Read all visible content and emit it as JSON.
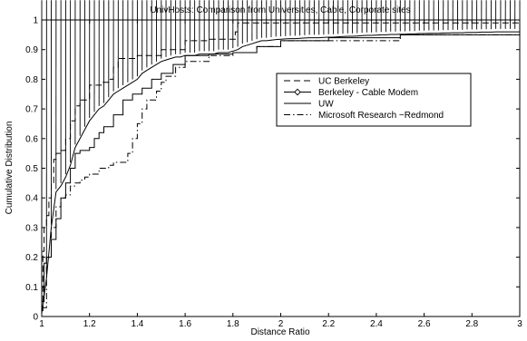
{
  "chart_data": {
    "type": "line",
    "title": "UnivHosts: Comparison from Universities, Cable, Corporate sites",
    "xlabel": "Distance Ratio",
    "ylabel": "Cumulative Distribution",
    "xlim": [
      1,
      3
    ],
    "ylim": [
      0,
      1
    ],
    "xticks": [
      "1",
      "1.2",
      "1.4",
      "1.6",
      "1.8",
      "2",
      "2.2",
      "2.4",
      "2.6",
      "2.8",
      "3"
    ],
    "yticks": [
      "0",
      "0.1",
      "0.2",
      "0.3",
      "0.4",
      "0.5",
      "0.6",
      "0.7",
      "0.8",
      "0.9",
      "1"
    ],
    "grid": false,
    "legend_position": "center-right",
    "series": [
      {
        "name": "UC Berkeley",
        "style": "dashed",
        "marker": "none",
        "x": [
          1.0,
          1.005,
          1.01,
          1.02,
          1.03,
          1.04,
          1.05,
          1.06,
          1.08,
          1.1,
          1.12,
          1.14,
          1.16,
          1.2,
          1.25,
          1.28,
          1.3,
          1.32,
          1.4,
          1.5,
          1.6,
          1.7,
          1.8,
          1.81,
          1.82,
          2.0,
          2.5,
          3.0
        ],
        "y": [
          0.02,
          0.22,
          0.3,
          0.34,
          0.4,
          0.45,
          0.53,
          0.55,
          0.56,
          0.6,
          0.66,
          0.71,
          0.73,
          0.78,
          0.79,
          0.8,
          0.84,
          0.87,
          0.88,
          0.9,
          0.93,
          0.935,
          0.935,
          0.96,
          0.99,
          0.99,
          0.99,
          0.99
        ]
      },
      {
        "name": "Berkeley - Cable Modem",
        "style": "solid",
        "marker": "diamond",
        "x": [
          1.0,
          1.02,
          1.04,
          1.06,
          1.08,
          1.1,
          1.12,
          1.14,
          1.16,
          1.18,
          1.2,
          1.22,
          1.24,
          1.26,
          1.28,
          1.3,
          1.32,
          1.34,
          1.36,
          1.38,
          1.4,
          1.42,
          1.44,
          1.46,
          1.48,
          1.5,
          1.52,
          1.54,
          1.56,
          1.58,
          1.6,
          1.62,
          1.64,
          1.66,
          1.68,
          1.7,
          1.72,
          1.74,
          1.76,
          1.78,
          1.8,
          1.82,
          1.84,
          1.86,
          1.88,
          1.9,
          1.92,
          1.94,
          1.96,
          1.98,
          2.0,
          2.02,
          2.04,
          2.06,
          2.08,
          2.1,
          2.12,
          2.14,
          2.16,
          2.18,
          2.2,
          2.22,
          2.24,
          2.26,
          2.28,
          2.3,
          2.32,
          2.34,
          2.36,
          2.38,
          2.4,
          2.42,
          2.44,
          2.46,
          2.48,
          2.5,
          2.52,
          2.54,
          2.56,
          2.58,
          2.6,
          2.62,
          2.64,
          2.66,
          2.68,
          2.7,
          2.72,
          2.74,
          2.76,
          2.78,
          2.8,
          2.82,
          2.84,
          2.86,
          2.88,
          2.9,
          2.92,
          2.94,
          2.96,
          2.98,
          3.0
        ],
        "y": [
          0.01,
          0.13,
          0.3,
          0.42,
          0.44,
          0.47,
          0.51,
          0.57,
          0.6,
          0.63,
          0.66,
          0.68,
          0.7,
          0.71,
          0.73,
          0.75,
          0.76,
          0.77,
          0.78,
          0.79,
          0.8,
          0.82,
          0.83,
          0.84,
          0.85,
          0.86,
          0.865,
          0.87,
          0.875,
          0.875,
          0.88,
          0.88,
          0.88,
          0.885,
          0.885,
          0.885,
          0.885,
          0.89,
          0.89,
          0.89,
          0.895,
          0.9,
          0.91,
          0.915,
          0.92,
          0.925,
          0.93,
          0.93,
          0.932,
          0.934,
          0.935,
          0.936,
          0.937,
          0.937,
          0.938,
          0.939,
          0.94,
          0.94,
          0.94,
          0.941,
          0.942,
          0.942,
          0.943,
          0.944,
          0.945,
          0.945,
          0.946,
          0.947,
          0.948,
          0.948,
          0.949,
          0.95,
          0.95,
          0.951,
          0.951,
          0.952,
          0.952,
          0.953,
          0.953,
          0.954,
          0.954,
          0.955,
          0.955,
          0.955,
          0.956,
          0.956,
          0.957,
          0.957,
          0.957,
          0.958,
          0.958,
          0.958,
          0.959,
          0.959,
          0.959,
          0.96,
          0.96,
          0.96,
          0.96,
          0.96,
          0.96
        ]
      },
      {
        "name": "UW",
        "style": "solid",
        "marker": "none",
        "x": [
          1.0,
          1.01,
          1.02,
          1.04,
          1.06,
          1.08,
          1.1,
          1.12,
          1.14,
          1.16,
          1.2,
          1.22,
          1.24,
          1.26,
          1.3,
          1.34,
          1.38,
          1.42,
          1.46,
          1.5,
          1.55,
          1.6,
          1.7,
          1.8,
          1.9,
          2.0,
          2.2,
          2.5,
          3.0
        ],
        "y": [
          0.05,
          0.18,
          0.2,
          0.26,
          0.33,
          0.4,
          0.45,
          0.5,
          0.55,
          0.56,
          0.57,
          0.6,
          0.62,
          0.64,
          0.68,
          0.73,
          0.75,
          0.77,
          0.8,
          0.82,
          0.85,
          0.88,
          0.885,
          0.89,
          0.91,
          0.93,
          0.94,
          0.95,
          0.96
        ]
      },
      {
        "name": "Microsoft Research −Redmond",
        "style": "dashdot",
        "marker": "none",
        "x": [
          1.0,
          1.02,
          1.04,
          1.06,
          1.08,
          1.1,
          1.12,
          1.14,
          1.16,
          1.18,
          1.2,
          1.24,
          1.28,
          1.3,
          1.34,
          1.36,
          1.38,
          1.4,
          1.42,
          1.44,
          1.48,
          1.5,
          1.52,
          1.56,
          1.6,
          1.7,
          1.8,
          1.9,
          2.0,
          2.5,
          3.0
        ],
        "y": [
          0.03,
          0.2,
          0.3,
          0.37,
          0.4,
          0.41,
          0.44,
          0.45,
          0.46,
          0.47,
          0.48,
          0.5,
          0.51,
          0.52,
          0.52,
          0.55,
          0.6,
          0.65,
          0.7,
          0.73,
          0.76,
          0.79,
          0.81,
          0.84,
          0.86,
          0.88,
          0.89,
          0.91,
          0.93,
          0.95,
          0.96
        ]
      }
    ]
  }
}
